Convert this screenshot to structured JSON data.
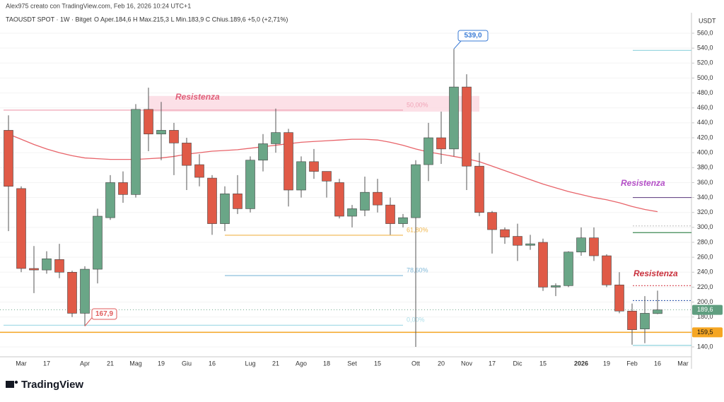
{
  "header": {
    "author_line": "Alex975 creato con TradingView.com, Feb 16, 2026 10:24 UTC+1",
    "symbol_line": "TAOUSDT SPOT · 1W · Bitget",
    "ohlc_line": "O Aper.184,6 H Max.215,3 L Min.183,9 C Chius.189,6 +5,0 (+2,71%)"
  },
  "branding": "TradingView",
  "chart_data": {
    "type": "candlestick",
    "y_axis_label": "USDT",
    "categories": [
      null,
      "Mar",
      null,
      "17",
      null,
      null,
      "Apr",
      null,
      "21",
      null,
      "Mag",
      null,
      "19",
      null,
      "Giu",
      null,
      "16",
      null,
      null,
      "Lug",
      null,
      "21",
      null,
      "Ago",
      null,
      "18",
      null,
      "Set",
      null,
      "15",
      null,
      null,
      "Ott",
      null,
      "20",
      null,
      "Nov",
      null,
      "17",
      null,
      "Dic",
      null,
      "15",
      null,
      null,
      "2026",
      null,
      "19",
      null,
      "Feb",
      null,
      "16",
      null,
      "Mar"
    ],
    "open": [
      430,
      352,
      245,
      243,
      257,
      240,
      185,
      244,
      313,
      360,
      344,
      458,
      425,
      430,
      413,
      384,
      366,
      305,
      345,
      325,
      390,
      412,
      427,
      350,
      388,
      375,
      360,
      315,
      323,
      347,
      330,
      305,
      313,
      384,
      420,
      405,
      488,
      382,
      320,
      297,
      288,
      276,
      280,
      220,
      222,
      267,
      286,
      262,
      223,
      188,
      164,
      184.6,
      null,
      null
    ],
    "high": [
      450,
      355,
      275,
      268,
      278,
      242,
      248,
      325,
      370,
      375,
      465,
      487,
      468,
      440,
      420,
      398,
      370,
      355,
      370,
      395,
      425,
      459,
      432,
      395,
      405,
      375,
      365,
      330,
      368,
      365,
      340,
      318,
      390,
      440,
      455,
      539,
      505,
      400,
      322,
      300,
      305,
      290,
      285,
      225,
      268,
      300,
      300,
      264,
      240,
      198,
      208,
      215.3,
      null,
      null
    ],
    "low": [
      295,
      240,
      212,
      238,
      232,
      180,
      167.9,
      225,
      310,
      333,
      340,
      402,
      390,
      370,
      350,
      355,
      290,
      295,
      318,
      320,
      375,
      400,
      328,
      340,
      365,
      340,
      312,
      300,
      315,
      320,
      290,
      300,
      140,
      362,
      385,
      395,
      350,
      315,
      265,
      278,
      255,
      270,
      215,
      208,
      220,
      262,
      255,
      220,
      185,
      143,
      145,
      183.9,
      null,
      null
    ],
    "close": [
      355,
      245,
      243,
      258,
      240,
      185,
      244,
      315,
      360,
      344,
      458,
      425,
      430,
      413,
      383,
      367,
      305,
      345,
      325,
      390,
      412,
      427,
      350,
      388,
      375,
      362,
      315,
      325,
      347,
      330,
      305,
      313,
      384,
      420,
      405,
      488,
      382,
      320,
      297,
      287,
      276,
      278,
      220,
      222,
      267,
      286,
      262,
      223,
      188,
      163,
      185,
      189.6,
      null,
      null
    ],
    "up_color": "#6aa687",
    "down_color": "#e05a47",
    "ma": {
      "color": "#e8646a",
      "values": [
        425,
        418,
        411,
        405,
        400,
        396,
        393,
        392,
        391,
        391,
        391,
        392,
        393,
        395,
        398,
        400,
        402,
        403,
        404,
        406,
        408,
        410,
        412,
        414,
        415,
        416,
        417,
        418,
        418,
        417,
        414,
        410,
        405,
        401,
        398,
        395,
        392,
        388,
        382,
        376,
        370,
        364,
        358,
        353,
        348,
        344,
        340,
        337,
        333,
        328,
        324,
        321,
        null,
        null
      ]
    },
    "ylim": [
      130,
      575
    ],
    "yticks": [
      {
        "value": 140,
        "label": "140,0"
      },
      {
        "value": 160,
        "label": "160,0"
      },
      {
        "value": 180,
        "label": "180,0"
      },
      {
        "value": 200,
        "label": "200,0"
      },
      {
        "value": 220,
        "label": "220,0"
      },
      {
        "value": 240,
        "label": "240,0"
      },
      {
        "value": 260,
        "label": "260,0"
      },
      {
        "value": 280,
        "label": "280,0"
      },
      {
        "value": 300,
        "label": "300,0"
      },
      {
        "value": 320,
        "label": "320,0"
      },
      {
        "value": 340,
        "label": "340,0"
      },
      {
        "value": 360,
        "label": "360,0"
      },
      {
        "value": 380,
        "label": "380,0"
      },
      {
        "value": 400,
        "label": "400,0"
      },
      {
        "value": 420,
        "label": "420,0"
      },
      {
        "value": 440,
        "label": "440,0"
      },
      {
        "value": 460,
        "label": "460,0"
      },
      {
        "value": 480,
        "label": "480,0"
      },
      {
        "value": 500,
        "label": "500,0"
      },
      {
        "value": 520,
        "label": "520,0"
      },
      {
        "value": 540,
        "label": "540,0"
      },
      {
        "value": 560,
        "label": "560,0"
      }
    ],
    "grid": true,
    "zone": {
      "from": 455,
      "to": 476,
      "color": "#fcdbe3"
    },
    "levels": [
      {
        "value": 457,
        "label": "50,00%",
        "color": "#f0a4b6"
      },
      {
        "value": 289.5,
        "label": "61,80%",
        "color": "#f0b54a"
      },
      {
        "value": 235.5,
        "label": "78,60%",
        "color": "#7fb8d8"
      },
      {
        "value": 169,
        "label": "0,00%",
        "color": "#a8dce8"
      },
      {
        "value": 537,
        "color": "#8fd3dd"
      },
      {
        "value": 142,
        "color": "#8fd3dd"
      },
      {
        "value": 340,
        "color": "#6b4c8a"
      },
      {
        "value": 293,
        "color": "#3f8a55"
      },
      {
        "value": 222,
        "color": "#d84a55",
        "dashed": true
      },
      {
        "value": 202,
        "color": "#3a5fb0",
        "dashed": true
      },
      {
        "value": 302,
        "color": "#cccccc",
        "dashed": true
      }
    ],
    "price_tags": [
      {
        "value": 159.5,
        "label": "159,5",
        "color": "#f5a623"
      },
      {
        "value": 189.6,
        "label": "189,6",
        "color": "#5f9e7f"
      }
    ],
    "callouts": [
      {
        "value": 539,
        "label": "539,0",
        "color": "#3a7bd5"
      },
      {
        "value": 167.9,
        "label": "167,9",
        "color": "#e05a5a"
      }
    ],
    "annotations": [
      {
        "text": "Resistenza",
        "color": "#e0607a"
      },
      {
        "text": "Resistenza",
        "color": "#b44fc7"
      },
      {
        "text": "Resistenza",
        "color": "#c9303c"
      }
    ]
  }
}
